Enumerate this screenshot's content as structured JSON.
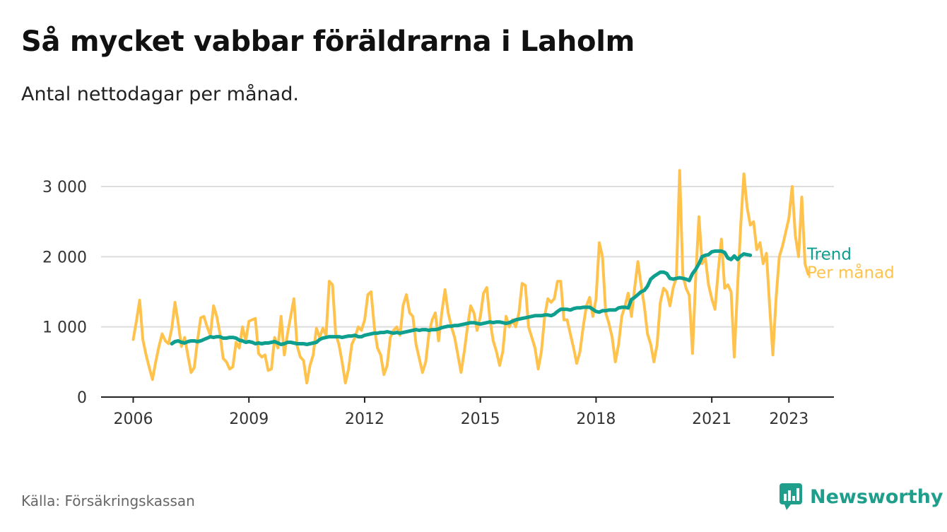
{
  "title": "Så mycket vabbar föräldrarna i Laholm",
  "subtitle": "Antal nettodagar per månad.",
  "source": "Källa: Försäkringskassan",
  "brand": "Newsworthy",
  "colors": {
    "trend": "#0e9f8f",
    "monthly": "#ffc34d",
    "grid": "#dddddd",
    "axis": "#222222",
    "brand": "#1f9e8c"
  },
  "chart_data": {
    "type": "line",
    "title": "Så mycket vabbar föräldrarna i Laholm",
    "subtitle": "Antal nettodagar per månad.",
    "xlabel": "",
    "ylabel": "",
    "ylim": [
      0,
      3000
    ],
    "xlim": [
      "2005-03",
      "2024-03"
    ],
    "y_ticks": [
      0,
      1000,
      2000,
      3000
    ],
    "y_tick_labels": [
      "0",
      "1 000",
      "2 000",
      "3 000"
    ],
    "x_ticks": [
      "2006-01",
      "2009-01",
      "2012-01",
      "2015-01",
      "2018-01",
      "2021-01",
      "2023-01"
    ],
    "x_tick_labels": [
      "2006",
      "2009",
      "2012",
      "2015",
      "2018",
      "2021",
      "2023"
    ],
    "grid": true,
    "legend": "inline labels at line ends (right)",
    "series": [
      {
        "name": "Per månad",
        "color": "#ffc34d",
        "start": "2006-01",
        "values": [
          820,
          1080,
          1380,
          820,
          600,
          420,
          250,
          500,
          720,
          900,
          800,
          760,
          980,
          1350,
          1050,
          720,
          850,
          600,
          350,
          420,
          800,
          1130,
          1150,
          1000,
          880,
          1300,
          1150,
          900,
          550,
          500,
          400,
          430,
          780,
          700,
          1000,
          800,
          1080,
          1100,
          1120,
          620,
          570,
          600,
          380,
          400,
          850,
          700,
          1150,
          600,
          900,
          1150,
          1400,
          730,
          570,
          520,
          200,
          450,
          600,
          980,
          850,
          980,
          880,
          1650,
          1600,
          900,
          750,
          500,
          200,
          400,
          750,
          850,
          1000,
          950,
          1100,
          1460,
          1500,
          1000,
          700,
          600,
          320,
          450,
          850,
          950,
          1000,
          880,
          1310,
          1460,
          1200,
          1150,
          750,
          550,
          350,
          500,
          900,
          1100,
          1200,
          800,
          1200,
          1530,
          1200,
          1000,
          850,
          600,
          350,
          650,
          1000,
          1300,
          1200,
          950,
          1150,
          1480,
          1560,
          1100,
          800,
          650,
          450,
          650,
          1150,
          1000,
          1100,
          1000,
          1200,
          1620,
          1590,
          1000,
          850,
          700,
          400,
          650,
          1150,
          1400,
          1350,
          1400,
          1650,
          1650,
          1100,
          1100,
          900,
          700,
          480,
          650,
          1000,
          1300,
          1420,
          1150,
          1400,
          2200,
          2000,
          1200,
          1050,
          850,
          500,
          750,
          1150,
          1300,
          1480,
          1150,
          1550,
          1930,
          1600,
          1300,
          900,
          750,
          500,
          750,
          1350,
          1550,
          1500,
          1300,
          1560,
          1700,
          3230,
          1740,
          1550,
          1450,
          620,
          1700,
          2570,
          1900,
          1980,
          1600,
          1400,
          1250,
          1800,
          2250,
          1550,
          1600,
          1500,
          570,
          1560,
          2440,
          3180,
          2700,
          2450,
          2500,
          2100,
          2200,
          1900,
          2050,
          1300,
          600,
          1400,
          2000,
          2150,
          2350,
          2550,
          3000,
          2300,
          2000,
          2850,
          1900,
          1750
        ]
      },
      {
        "name": "Trend",
        "color": "#0e9f8f",
        "start": "2007-01",
        "values": [
          760,
          790,
          800,
          780,
          770,
          790,
          800,
          800,
          790,
          800,
          820,
          840,
          860,
          850,
          860,
          860,
          840,
          840,
          850,
          850,
          840,
          810,
          800,
          780,
          790,
          780,
          760,
          770,
          760,
          770,
          770,
          780,
          790,
          770,
          750,
          760,
          780,
          780,
          770,
          760,
          760,
          760,
          750,
          760,
          770,
          780,
          820,
          840,
          850,
          860,
          860,
          860,
          860,
          850,
          860,
          870,
          870,
          880,
          860,
          860,
          880,
          890,
          900,
          910,
          910,
          920,
          920,
          930,
          920,
          910,
          920,
          910,
          920,
          930,
          940,
          950,
          960,
          950,
          960,
          960,
          950,
          960,
          960,
          970,
          990,
          1000,
          1010,
          1010,
          1020,
          1020,
          1030,
          1040,
          1050,
          1060,
          1060,
          1050,
          1040,
          1050,
          1060,
          1070,
          1060,
          1070,
          1070,
          1060,
          1050,
          1060,
          1080,
          1100,
          1110,
          1120,
          1130,
          1140,
          1150,
          1160,
          1160,
          1160,
          1170,
          1170,
          1160,
          1180,
          1220,
          1250,
          1250,
          1250,
          1240,
          1260,
          1270,
          1270,
          1280,
          1280,
          1280,
          1250,
          1220,
          1210,
          1230,
          1230,
          1240,
          1240,
          1240,
          1270,
          1280,
          1280,
          1270,
          1390,
          1420,
          1460,
          1500,
          1520,
          1580,
          1680,
          1720,
          1750,
          1780,
          1780,
          1760,
          1690,
          1680,
          1690,
          1700,
          1690,
          1680,
          1660,
          1760,
          1820,
          1900,
          2000,
          2020,
          2030,
          2070,
          2080,
          2080,
          2080,
          2060,
          1980,
          1960,
          2010,
          1960,
          2010,
          2040,
          2030,
          2020
        ]
      }
    ]
  }
}
